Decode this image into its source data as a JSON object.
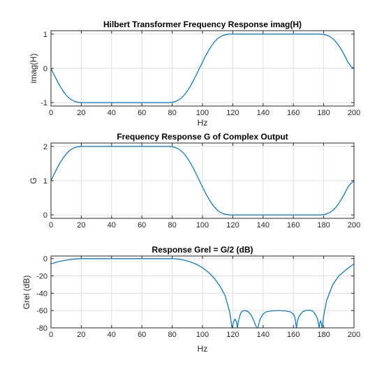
{
  "chart_data": [
    {
      "type": "line",
      "title": "Hilbert Transformer Frequency Response imag(H)",
      "xlabel": "Hz",
      "ylabel": "imag(H)",
      "xlim": [
        0,
        200
      ],
      "ylim": [
        -1.1,
        1.1
      ],
      "grid": true,
      "xticks": [
        0,
        20,
        40,
        60,
        80,
        100,
        120,
        140,
        160,
        180,
        200
      ],
      "yticks": [
        -1,
        0,
        1
      ],
      "series": [
        {
          "color": "#0072bd",
          "x": [
            0,
            2,
            4,
            6,
            8,
            10,
            12,
            14,
            16,
            18,
            20,
            25,
            30,
            40,
            50,
            60,
            70,
            78,
            80,
            82,
            84,
            86,
            88,
            90,
            92,
            94,
            96,
            98,
            100,
            102,
            104,
            106,
            108,
            110,
            112,
            114,
            116,
            118,
            120,
            125,
            130,
            140,
            150,
            160,
            170,
            178,
            180,
            182,
            184,
            186,
            188,
            190,
            192,
            194,
            196,
            198,
            200
          ],
          "y": [
            0,
            -0.18,
            -0.36,
            -0.52,
            -0.66,
            -0.78,
            -0.87,
            -0.93,
            -0.97,
            -0.99,
            -1.0,
            -1.0,
            -1.0,
            -1.0,
            -1.0,
            -1.0,
            -1.0,
            -1.0,
            -0.99,
            -0.97,
            -0.93,
            -0.87,
            -0.78,
            -0.66,
            -0.52,
            -0.36,
            -0.18,
            0,
            0.18,
            0.36,
            0.52,
            0.66,
            0.78,
            0.87,
            0.93,
            0.97,
            0.99,
            1.0,
            1.0,
            1.0,
            1.0,
            1.0,
            1.0,
            1.0,
            1.0,
            1.0,
            0.99,
            0.97,
            0.93,
            0.87,
            0.78,
            0.66,
            0.52,
            0.36,
            0.18,
            0.06,
            0
          ]
        }
      ]
    },
    {
      "type": "line",
      "title": "Frequency Response G of Complex Output",
      "xlabel": "",
      "ylabel": "G",
      "xlim": [
        0,
        200
      ],
      "ylim": [
        -0.1,
        2.1
      ],
      "grid": true,
      "xticks": [
        0,
        20,
        40,
        60,
        80,
        100,
        120,
        140,
        160,
        180,
        200
      ],
      "yticks": [
        0,
        1,
        2
      ],
      "series": [
        {
          "color": "#0072bd",
          "x": [
            0,
            2,
            4,
            6,
            8,
            10,
            12,
            14,
            16,
            18,
            20,
            25,
            30,
            40,
            50,
            60,
            70,
            78,
            80,
            82,
            84,
            86,
            88,
            90,
            92,
            94,
            96,
            98,
            100,
            102,
            104,
            106,
            108,
            110,
            112,
            114,
            116,
            118,
            120,
            125,
            130,
            140,
            150,
            160,
            170,
            178,
            180,
            182,
            184,
            186,
            188,
            190,
            192,
            194,
            196,
            198,
            200
          ],
          "y": [
            1.0,
            1.18,
            1.36,
            1.52,
            1.66,
            1.78,
            1.87,
            1.93,
            1.97,
            1.99,
            2.0,
            2.0,
            2.0,
            2.0,
            2.0,
            2.0,
            2.0,
            2.0,
            1.99,
            1.97,
            1.93,
            1.87,
            1.78,
            1.66,
            1.52,
            1.36,
            1.18,
            1.0,
            0.82,
            0.64,
            0.48,
            0.34,
            0.22,
            0.13,
            0.07,
            0.03,
            0.01,
            0.0,
            0.0,
            0.0,
            0.0,
            0.0,
            0.0,
            0.0,
            0.0,
            0.0,
            0.01,
            0.03,
            0.07,
            0.13,
            0.22,
            0.34,
            0.48,
            0.64,
            0.82,
            0.92,
            1.0
          ]
        }
      ]
    },
    {
      "type": "line",
      "title": "Response Grel = G/2  (dB)",
      "xlabel": "Hz",
      "ylabel": "Grel (dB)",
      "xlim": [
        0,
        200
      ],
      "ylim": [
        -80,
        3
      ],
      "grid": true,
      "xticks": [
        0,
        20,
        40,
        60,
        80,
        100,
        120,
        140,
        160,
        180,
        200
      ],
      "yticks": [
        -80,
        -60,
        -40,
        -20,
        0
      ],
      "series": [
        {
          "color": "#0072bd",
          "x": [
            0,
            5,
            10,
            15,
            20,
            30,
            40,
            50,
            60,
            70,
            80,
            84,
            88,
            92,
            96,
            100,
            104,
            108,
            112,
            115,
            118,
            119.5,
            120.5,
            121.5,
            122.5,
            123,
            124,
            125,
            126,
            127,
            128,
            130,
            132,
            134,
            135,
            136,
            136.5,
            137,
            138,
            140,
            142,
            145,
            150,
            155,
            158,
            160,
            161,
            161.5,
            162,
            162.5,
            163,
            164,
            166,
            168,
            170,
            172,
            173,
            174,
            175,
            176,
            177,
            177.5,
            178,
            178.5,
            179,
            180,
            182,
            186,
            190,
            195,
            200
          ],
          "y": [
            -6,
            -3.5,
            -1.8,
            -0.6,
            0,
            0,
            0,
            0,
            0,
            0,
            0,
            -0.5,
            -1.8,
            -3.8,
            -6.5,
            -10.5,
            -16,
            -23,
            -33,
            -43,
            -62,
            -80,
            -73,
            -70,
            -73,
            -80,
            -70,
            -64,
            -61,
            -60,
            -60,
            -61,
            -65,
            -72,
            -77,
            -80,
            -80,
            -77,
            -70,
            -64,
            -61.5,
            -60.5,
            -60,
            -60.5,
            -61.5,
            -64,
            -68,
            -74,
            -80,
            -74,
            -70,
            -66,
            -61.5,
            -60,
            -59.5,
            -60,
            -61,
            -63,
            -66,
            -70,
            -80,
            -74,
            -72,
            -75,
            -80,
            -66,
            -48,
            -30,
            -20,
            -12.5,
            -6
          ]
        }
      ]
    }
  ]
}
